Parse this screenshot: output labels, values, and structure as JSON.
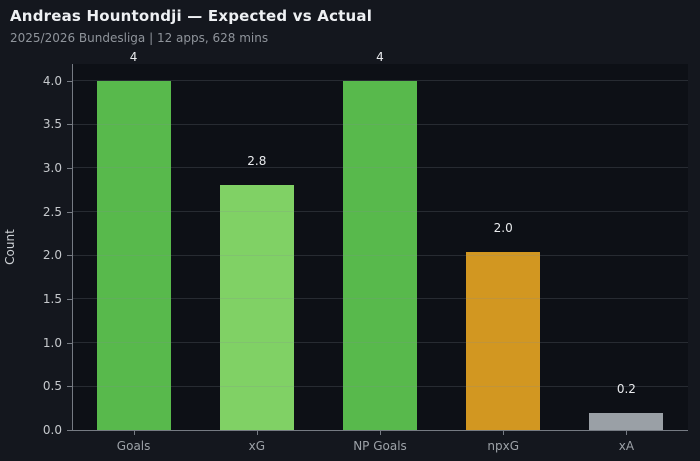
{
  "header": {
    "title": "Andreas Hountondji — Expected vs Actual",
    "subtitle": "2025/2026 Bundesliga | 12 apps, 628 mins"
  },
  "chart_data": {
    "type": "bar",
    "title": "Andreas Hountondji — Expected vs Actual",
    "subtitle": "2025/2026 Bundesliga | 12 apps, 628 mins",
    "categories": [
      "Goals",
      "xG",
      "NP Goals",
      "npxG",
      "xA"
    ],
    "values": [
      4,
      2.8,
      4,
      2.04,
      0.2
    ],
    "value_labels": [
      "4",
      "2.8",
      "4",
      "2.0",
      "0.2"
    ],
    "bar_colors": [
      "#58b94c",
      "#80d165",
      "#58b94c",
      "#d29721",
      "#9aa0a6"
    ],
    "xlabel": "",
    "ylabel": "Count",
    "ylim": [
      0,
      4.19
    ],
    "yticks": [
      0,
      0.5,
      1,
      1.5,
      2,
      2.5,
      3,
      3.5,
      4
    ],
    "ytick_labels": [
      "0.0",
      "0.5",
      "1.0",
      "1.5",
      "2.0",
      "2.5",
      "3.0",
      "3.5",
      "4.0"
    ],
    "grid": "horizontal",
    "grid_over_bars": true,
    "legend_position": "none",
    "colors": {
      "figure_background": "#14171e",
      "plot_background": "#0d1016",
      "grid_color": "#868b94",
      "spine_color": "#767b83",
      "tick_label_color": "#c6c9cd",
      "x_label_color": "#9da2a8",
      "value_label_color": "#e9ebee",
      "title_color": "#eef0f3",
      "subtitle_color": "#8f949b"
    }
  }
}
